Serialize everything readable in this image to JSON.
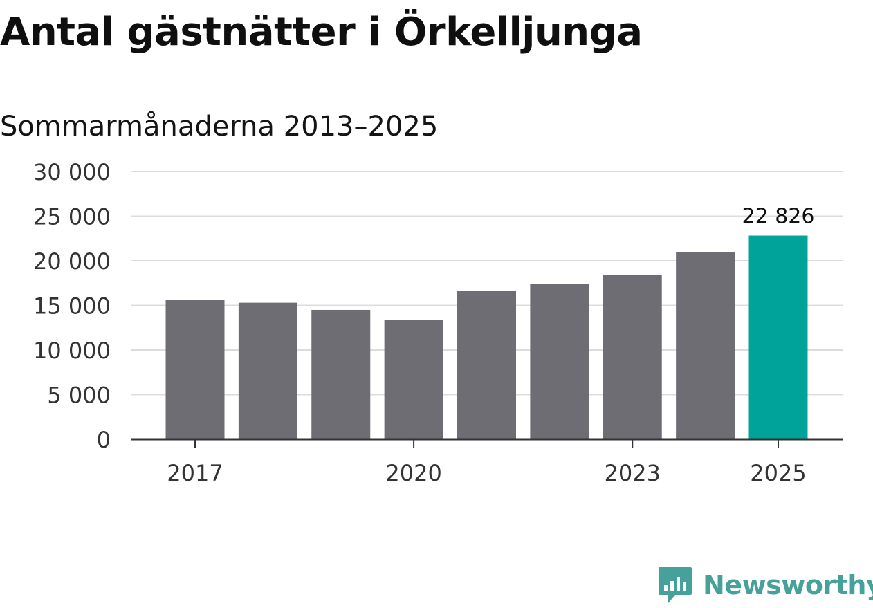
{
  "title": "Antal gästnätter i Örkelljunga",
  "subtitle": "Sommarmånaderna 2013–2025",
  "brand": {
    "name": "Newsworthy",
    "color": "#46a19a",
    "icon": "newsworthy-logo-icon"
  },
  "colors": {
    "bar": "#6e6d73",
    "highlight": "#00a39a",
    "grid": "#dcdcdc",
    "axis": "#333333"
  },
  "chart_data": {
    "type": "bar",
    "title": "Antal gästnätter i Örkelljunga",
    "subtitle": "Sommarmånaderna 2013–2025",
    "xlabel": "",
    "ylabel": "",
    "categories": [
      "2017",
      "2018",
      "2019",
      "2020",
      "2021",
      "2022",
      "2023",
      "2024",
      "2025"
    ],
    "values": [
      15600,
      15300,
      14500,
      13400,
      16600,
      17400,
      18400,
      21000,
      22826
    ],
    "highlight_index": 8,
    "x_tick_labels": [
      "2017",
      "2020",
      "2023",
      "2025"
    ],
    "data_labels": [
      {
        "category": "2025",
        "text": "22 826"
      }
    ],
    "ylim": [
      0,
      30000
    ],
    "y_ticks": [
      {
        "value": 0,
        "label": "0"
      },
      {
        "value": 5000,
        "label": "5 000"
      },
      {
        "value": 10000,
        "label": "10 000"
      },
      {
        "value": 15000,
        "label": "15 000"
      },
      {
        "value": 20000,
        "label": "20 000"
      },
      {
        "value": 25000,
        "label": "25 000"
      },
      {
        "value": 30000,
        "label": "30 000"
      }
    ],
    "grid": true,
    "legend": "none"
  }
}
